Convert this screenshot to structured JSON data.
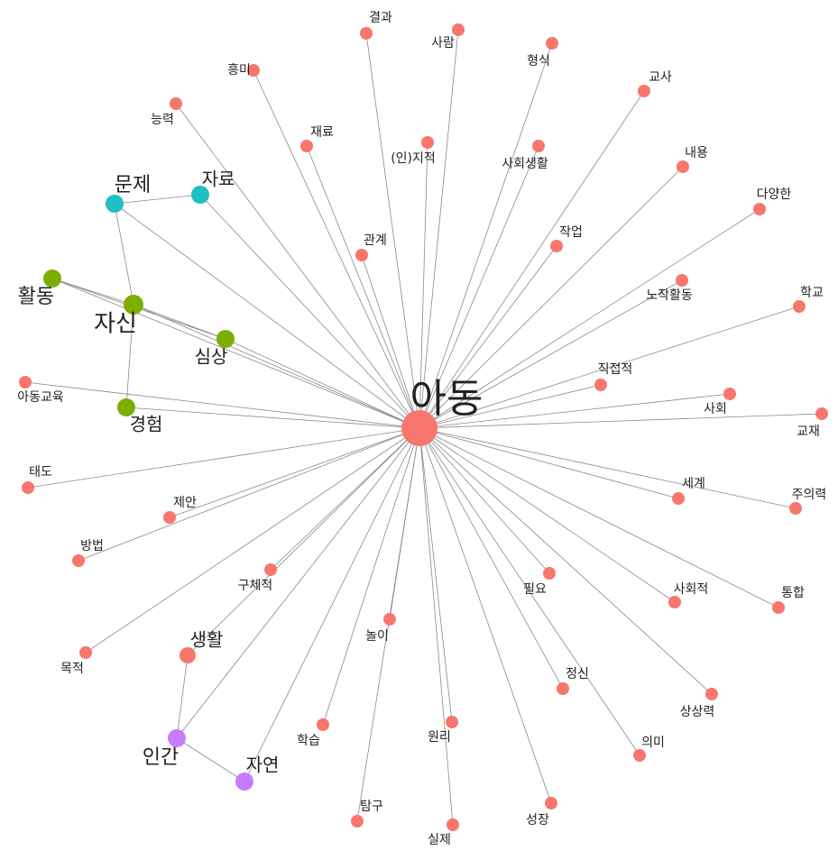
{
  "nodes": [
    {
      "label": "아동"
    },
    {
      "label": "결과"
    },
    {
      "label": "사람"
    },
    {
      "label": "형식"
    },
    {
      "label": "흥미"
    },
    {
      "label": "교사"
    },
    {
      "label": "능력"
    },
    {
      "label": "재료"
    },
    {
      "label": "(인)지적"
    },
    {
      "label": "사회생활"
    },
    {
      "label": "내용"
    },
    {
      "label": "다양한"
    },
    {
      "label": "관계"
    },
    {
      "label": "작업"
    },
    {
      "label": "노작활동"
    },
    {
      "label": "학교"
    },
    {
      "label": "직접적"
    },
    {
      "label": "사회"
    },
    {
      "label": "교재"
    },
    {
      "label": "아동교육"
    },
    {
      "label": "태도"
    },
    {
      "label": "제안"
    },
    {
      "label": "방법"
    },
    {
      "label": "세계"
    },
    {
      "label": "주의력"
    },
    {
      "label": "구체적"
    },
    {
      "label": "필요"
    },
    {
      "label": "사회적"
    },
    {
      "label": "통합"
    },
    {
      "label": "놀이"
    },
    {
      "label": "목적"
    },
    {
      "label": "생활"
    },
    {
      "label": "정신"
    },
    {
      "label": "상상력"
    },
    {
      "label": "학습"
    },
    {
      "label": "원리"
    },
    {
      "label": "의미"
    },
    {
      "label": "성장"
    },
    {
      "label": "탐구"
    },
    {
      "label": "실제"
    },
    {
      "label": "문제"
    },
    {
      "label": "자료"
    },
    {
      "label": "활동"
    },
    {
      "label": "자신"
    },
    {
      "label": "심상"
    },
    {
      "label": "경험"
    },
    {
      "label": "인간"
    },
    {
      "label": "자연"
    }
  ]
}
